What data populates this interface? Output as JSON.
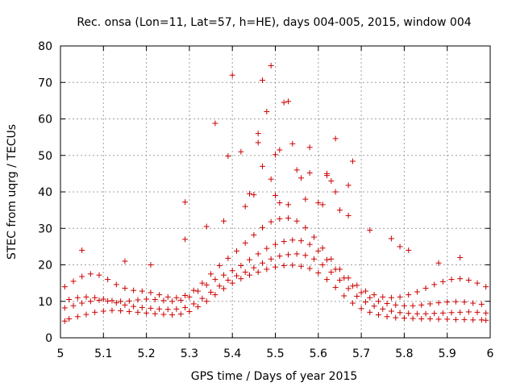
{
  "chart_data": {
    "type": "scatter",
    "title": "Rec. onsa (Lon=11, Lat=57, h=HE), days 004-005, 2015, window 004",
    "xlabel": "GPS time / Days of year 2015",
    "ylabel": "STEC from uqrg / TECUs",
    "xlim": [
      5,
      6
    ],
    "ylim": [
      0,
      80
    ],
    "xticks": [
      "5",
      "5.1",
      "5.2",
      "5.3",
      "5.4",
      "5.5",
      "5.6",
      "5.7",
      "5.8",
      "5.9",
      "6"
    ],
    "yticks": [
      "0",
      "10",
      "20",
      "30",
      "40",
      "50",
      "60",
      "70",
      "80"
    ],
    "grid": true,
    "marker": "+",
    "color": "#cc0000",
    "series": [
      {
        "x": [
          5.01,
          5.02,
          5.04,
          5.06,
          5.08,
          5.1,
          5.12,
          5.14,
          5.16,
          5.18,
          5.2,
          5.22,
          5.24,
          5.26,
          5.28,
          5.3,
          5.32,
          5.34,
          5.36,
          5.38,
          5.4,
          5.42,
          5.44,
          5.46,
          5.48,
          5.5,
          5.52,
          5.54,
          5.56,
          5.58,
          5.6,
          5.62,
          5.64,
          5.66,
          5.68,
          5.7,
          5.72,
          5.74,
          5.76,
          5.78,
          5.8,
          5.82,
          5.84,
          5.86,
          5.88,
          5.9,
          5.92,
          5.94,
          5.96,
          5.98,
          5.99
        ],
        "y": [
          4.6,
          5.2,
          5.8,
          6.4,
          7.0,
          7.3,
          7.5,
          7.4,
          7.2,
          7.0,
          6.8,
          6.6,
          6.4,
          6.3,
          6.5,
          7.2,
          8.5,
          10.0,
          11.8,
          13.5,
          15.0,
          16.2,
          17.2,
          18.0,
          18.8,
          19.4,
          19.8,
          19.9,
          19.6,
          19.0,
          17.8,
          16.0,
          13.8,
          11.5,
          9.5,
          8.0,
          7.0,
          6.3,
          5.8,
          5.5,
          5.4,
          5.3,
          5.2,
          5.2,
          5.1,
          5.1,
          5.0,
          5.0,
          4.9,
          4.9,
          4.8
        ]
      },
      {
        "x": [
          5.01,
          5.03,
          5.05,
          5.07,
          5.09,
          5.11,
          5.13,
          5.15,
          5.17,
          5.19,
          5.21,
          5.23,
          5.25,
          5.27,
          5.29,
          5.31,
          5.33,
          5.35,
          5.37,
          5.39,
          5.41,
          5.43,
          5.45,
          5.47,
          5.49,
          5.51,
          5.53,
          5.55,
          5.57,
          5.59,
          5.61,
          5.63,
          5.65,
          5.67,
          5.69,
          5.71,
          5.73,
          5.75,
          5.77,
          5.79,
          5.81,
          5.83,
          5.85,
          5.87,
          5.89,
          5.91,
          5.93,
          5.95,
          5.97,
          5.99
        ],
        "y": [
          8.2,
          8.8,
          9.5,
          10.0,
          10.3,
          10.1,
          9.6,
          9.0,
          8.6,
          8.3,
          8.1,
          7.9,
          7.8,
          7.9,
          8.3,
          9.3,
          10.8,
          12.5,
          14.2,
          15.8,
          17.0,
          18.0,
          19.2,
          20.5,
          21.6,
          22.4,
          22.8,
          23.0,
          22.6,
          21.6,
          20.0,
          18.0,
          15.8,
          13.5,
          11.4,
          9.8,
          8.7,
          7.9,
          7.3,
          6.9,
          6.7,
          6.6,
          6.6,
          6.7,
          6.8,
          6.9,
          7.0,
          7.1,
          7.0,
          6.8
        ]
      },
      {
        "x": [
          5.02,
          5.04,
          5.06,
          5.08,
          5.1,
          5.12,
          5.14,
          5.16,
          5.18,
          5.2,
          5.22,
          5.24,
          5.26,
          5.28,
          5.3,
          5.32,
          5.34,
          5.36,
          5.38,
          5.4,
          5.42,
          5.44,
          5.46,
          5.48,
          5.5,
          5.52,
          5.54,
          5.56,
          5.58,
          5.6,
          5.62,
          5.64,
          5.66,
          5.68,
          5.7,
          5.72,
          5.74,
          5.76,
          5.78,
          5.8,
          5.82,
          5.84,
          5.86,
          5.88,
          5.9,
          5.92,
          5.94,
          5.96,
          5.98
        ],
        "y": [
          10.5,
          11.0,
          11.2,
          11.0,
          10.6,
          10.2,
          10.0,
          10.1,
          10.4,
          10.6,
          10.5,
          10.2,
          10.0,
          10.3,
          11.2,
          12.8,
          14.5,
          16.0,
          17.2,
          18.4,
          19.8,
          21.4,
          23.0,
          24.5,
          25.6,
          26.4,
          26.8,
          26.6,
          25.6,
          23.8,
          21.4,
          18.8,
          16.4,
          14.2,
          12.4,
          11.0,
          10.0,
          9.4,
          9.0,
          8.8,
          8.8,
          9.0,
          9.3,
          9.6,
          9.8,
          9.9,
          9.8,
          9.5,
          9.2
        ]
      },
      {
        "x": [
          5.01,
          5.03,
          5.05,
          5.07,
          5.09,
          5.11,
          5.13,
          5.15,
          5.17,
          5.19,
          5.21,
          5.23,
          5.25,
          5.27,
          5.29,
          5.31,
          5.33,
          5.35,
          5.37,
          5.39,
          5.41,
          5.43,
          5.45,
          5.47,
          5.49,
          5.51,
          5.53,
          5.55,
          5.57,
          5.59,
          5.61,
          5.63,
          5.65,
          5.67,
          5.69,
          5.71,
          5.73,
          5.75,
          5.77,
          5.79,
          5.81,
          5.83,
          5.85,
          5.87,
          5.89,
          5.91,
          5.93,
          5.95,
          5.97,
          5.99
        ],
        "y": [
          14.0,
          15.5,
          16.8,
          17.5,
          17.2,
          16.0,
          14.6,
          13.6,
          13.0,
          12.8,
          12.4,
          11.8,
          11.2,
          11.0,
          11.6,
          13.0,
          15.0,
          17.5,
          19.8,
          21.8,
          23.8,
          26.0,
          28.2,
          30.2,
          31.8,
          32.6,
          32.8,
          32.0,
          30.2,
          27.6,
          24.6,
          21.6,
          18.8,
          16.4,
          14.4,
          12.8,
          11.8,
          11.2,
          11.0,
          11.2,
          11.8,
          12.6,
          13.6,
          14.6,
          15.4,
          16.0,
          16.2,
          15.8,
          15.0,
          14.0
        ]
      },
      {
        "x": [
          5.05,
          5.15,
          5.21,
          5.29,
          5.29,
          5.34,
          5.36,
          5.38,
          5.39,
          5.4,
          5.42,
          5.43,
          5.44,
          5.45,
          5.46,
          5.46,
          5.47,
          5.47,
          5.48,
          5.49,
          5.49,
          5.5,
          5.5,
          5.51,
          5.51,
          5.52,
          5.53,
          5.53,
          5.54,
          5.55,
          5.56,
          5.57,
          5.58,
          5.58,
          5.6,
          5.61,
          5.62,
          5.62,
          5.63,
          5.64,
          5.64,
          5.65,
          5.67,
          5.67,
          5.68,
          5.72,
          5.77,
          5.79,
          5.81,
          5.88,
          5.93
        ],
        "y": [
          24.0,
          21.0,
          20.0,
          27.0,
          37.2,
          30.5,
          58.8,
          32.0,
          49.8,
          72.0,
          51.0,
          36.0,
          39.5,
          39.2,
          56.0,
          53.5,
          47.0,
          70.6,
          62.0,
          74.6,
          43.5,
          50.2,
          39.0,
          37.0,
          51.5,
          64.5,
          64.8,
          36.5,
          53.2,
          46.0,
          43.8,
          38.0,
          45.2,
          52.2,
          37.0,
          36.5,
          45.0,
          44.5,
          43.0,
          54.6,
          40.0,
          35.0,
          41.8,
          33.5,
          48.4,
          29.5,
          27.2,
          25.0,
          24.0,
          20.5,
          22.0
        ]
      }
    ]
  }
}
